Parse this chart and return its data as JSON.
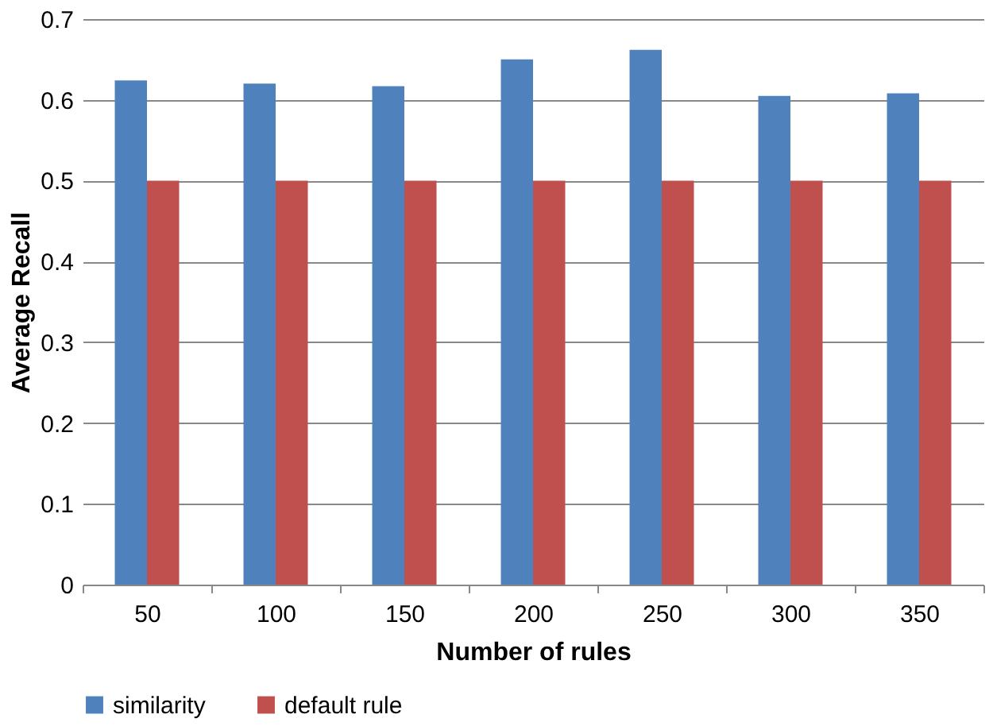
{
  "chart_data": {
    "type": "bar",
    "xlabel": "Number of rules",
    "ylabel": "Average Recall",
    "categories": [
      "50",
      "100",
      "150",
      "200",
      "250",
      "300",
      "350"
    ],
    "series": [
      {
        "name": "similarity",
        "color": "#4f81bd",
        "values": [
          0.624,
          0.62,
          0.617,
          0.65,
          0.662,
          0.605,
          0.608
        ]
      },
      {
        "name": "default rule",
        "color": "#c0504d",
        "values": [
          0.5,
          0.5,
          0.5,
          0.5,
          0.5,
          0.5,
          0.5
        ]
      }
    ],
    "ylim": [
      0,
      0.7
    ],
    "yticks": [
      {
        "value": 0,
        "label": "0"
      },
      0.1,
      0.2,
      0.3,
      0.4,
      0.5,
      0.6,
      0.7
    ],
    "grid": "y",
    "legend": "bottom"
  }
}
